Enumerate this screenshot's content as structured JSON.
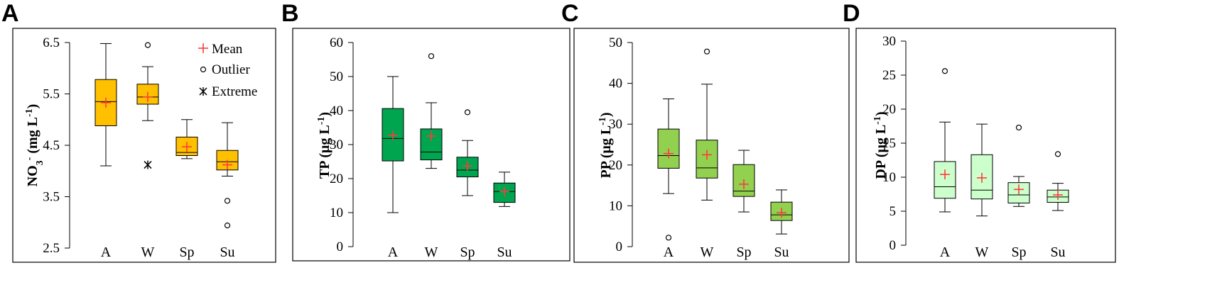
{
  "chart_data": [
    {
      "type": "box",
      "panel": "A",
      "ylabel": "NO3- (mg L-1)",
      "ylabel_parts": {
        "main": "NO",
        "sub": "3",
        "sup1": "-",
        "rest": " (mg L",
        "sup2": "-1",
        "close": ")"
      },
      "ylim": [
        2.5,
        6.5
      ],
      "ticks": [
        2.5,
        3.5,
        4.5,
        5.5,
        6.5
      ],
      "tick_labels": [
        "2.5",
        "3.5",
        "4.5",
        "5.5",
        "6.5"
      ],
      "categories": [
        "A",
        "W",
        "Sp",
        "Su"
      ],
      "fill": "#FFC000",
      "legend": {
        "mean": "Mean",
        "outlier": "Outlier",
        "extreme": "Extreme",
        "placement": "top-right"
      },
      "boxes": [
        {
          "min": 4.1,
          "q1": 4.88,
          "median": 5.35,
          "q3": 5.78,
          "max": 6.48,
          "mean": 5.33,
          "outliers": [],
          "extremes": []
        },
        {
          "min": 4.98,
          "q1": 5.3,
          "median": 5.44,
          "q3": 5.69,
          "max": 6.03,
          "mean": 5.44,
          "outliers": [
            6.45
          ],
          "extremes": [
            4.12
          ]
        },
        {
          "min": 4.24,
          "q1": 4.3,
          "median": 4.36,
          "q3": 4.66,
          "max": 5.0,
          "mean": 4.47,
          "outliers": [],
          "extremes": []
        },
        {
          "min": 3.9,
          "q1": 4.02,
          "median": 4.18,
          "q3": 4.4,
          "max": 4.94,
          "mean": 4.12,
          "outliers": [
            3.42,
            2.94
          ],
          "extremes": []
        }
      ]
    },
    {
      "type": "box",
      "panel": "B",
      "ylabel": "TP (μg L-1)",
      "ylabel_parts": {
        "main": "TP (μg L",
        "sup2": "-1",
        "close": ")"
      },
      "ylim": [
        0,
        60
      ],
      "ticks": [
        0,
        10,
        20,
        30,
        40,
        50,
        60
      ],
      "tick_labels": [
        "0",
        "10",
        "20",
        "30",
        "40",
        "50",
        "60"
      ],
      "categories": [
        "A",
        "W",
        "Sp",
        "Su"
      ],
      "fill": "#00A550",
      "boxes": [
        {
          "min": 10,
          "q1": 25.2,
          "median": 31.8,
          "q3": 40.6,
          "max": 50,
          "mean": 32.7,
          "outliers": []
        },
        {
          "min": 23,
          "q1": 25.5,
          "median": 27.8,
          "q3": 34.6,
          "max": 42.3,
          "mean": 32.5,
          "outliers": [
            56
          ]
        },
        {
          "min": 15,
          "q1": 20.5,
          "median": 22.5,
          "q3": 26.3,
          "max": 31.2,
          "mean": 23.7,
          "outliers": [
            39.5
          ]
        },
        {
          "min": 11.8,
          "q1": 13,
          "median": 16.2,
          "q3": 18.7,
          "max": 21.9,
          "mean": 16.2,
          "outliers": []
        }
      ]
    },
    {
      "type": "box",
      "panel": "C",
      "ylabel": "PP (μg L-1)",
      "ylabel_parts": {
        "main": "PP (μg L",
        "sup2": "-1",
        "close": ")"
      },
      "ylim": [
        0,
        50
      ],
      "ticks": [
        0,
        10,
        20,
        30,
        40,
        50
      ],
      "tick_labels": [
        "0",
        "10",
        "20",
        "30",
        "40",
        "50"
      ],
      "categories": [
        "A",
        "W",
        "Sp",
        "Su"
      ],
      "fill": "#92D050",
      "boxes": [
        {
          "min": 13,
          "q1": 19.2,
          "median": 22.3,
          "q3": 28.8,
          "max": 36.2,
          "mean": 22.8,
          "outliers": [
            2.2
          ]
        },
        {
          "min": 11.4,
          "q1": 16.8,
          "median": 19.3,
          "q3": 26.1,
          "max": 39.8,
          "mean": 22.5,
          "outliers": [
            47.8
          ]
        },
        {
          "min": 8.5,
          "q1": 12.3,
          "median": 13.6,
          "q3": 20.1,
          "max": 23.6,
          "mean": 15.3,
          "outliers": []
        },
        {
          "min": 3.1,
          "q1": 6.4,
          "median": 7.8,
          "q3": 10.9,
          "max": 13.9,
          "mean": 8.3,
          "outliers": []
        }
      ]
    },
    {
      "type": "box",
      "panel": "D",
      "ylabel": "DP (μg L-1)",
      "ylabel_parts": {
        "main": "DP (μg L",
        "sup2": "-1",
        "close": ")"
      },
      "ylim": [
        0,
        30
      ],
      "ticks": [
        0,
        5,
        10,
        15,
        20,
        25,
        30
      ],
      "tick_labels": [
        "0",
        "5",
        "10",
        "15",
        "20",
        "25",
        "30"
      ],
      "categories": [
        "A",
        "W",
        "Sp",
        "Su"
      ],
      "fill": "#CCFFCC",
      "boxes": [
        {
          "min": 4.9,
          "q1": 6.9,
          "median": 8.6,
          "q3": 12.3,
          "max": 18.1,
          "mean": 10.4,
          "outliers": [
            25.6
          ]
        },
        {
          "min": 4.3,
          "q1": 6.8,
          "median": 8.1,
          "q3": 13.3,
          "max": 17.8,
          "mean": 9.9,
          "outliers": []
        },
        {
          "min": 5.7,
          "q1": 6.2,
          "median": 7.4,
          "q3": 9.2,
          "max": 10.1,
          "mean": 8.2,
          "outliers": [
            17.3
          ]
        },
        {
          "min": 5.1,
          "q1": 6.3,
          "median": 7.1,
          "q3": 8.1,
          "max": 9.1,
          "mean": 7.4,
          "outliers": [
            13.4
          ]
        }
      ]
    }
  ]
}
